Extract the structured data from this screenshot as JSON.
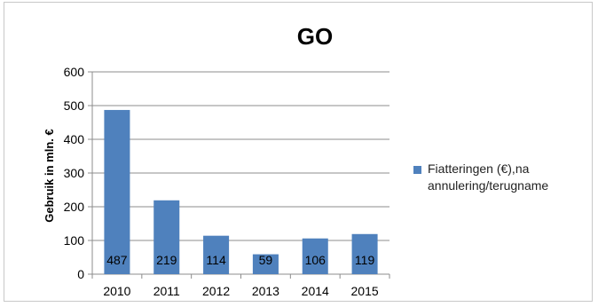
{
  "chart_data": {
    "type": "bar",
    "title": "GO",
    "ylabel": "Gebruik in mln. €",
    "xlabel": "",
    "categories": [
      "2010",
      "2011",
      "2012",
      "2013",
      "2014",
      "2015"
    ],
    "series": [
      {
        "name": "Fiatteringen (€),na annulering/terugname",
        "values": [
          487,
          219,
          114,
          59,
          106,
          119
        ],
        "color": "#4f81bd"
      }
    ],
    "data_labels": [
      "487",
      "219",
      "114",
      "59",
      "106",
      "119"
    ],
    "ylim": [
      0,
      600
    ],
    "yticks": [
      0,
      100,
      200,
      300,
      400,
      500,
      600
    ],
    "grid": true,
    "legend": "right"
  }
}
